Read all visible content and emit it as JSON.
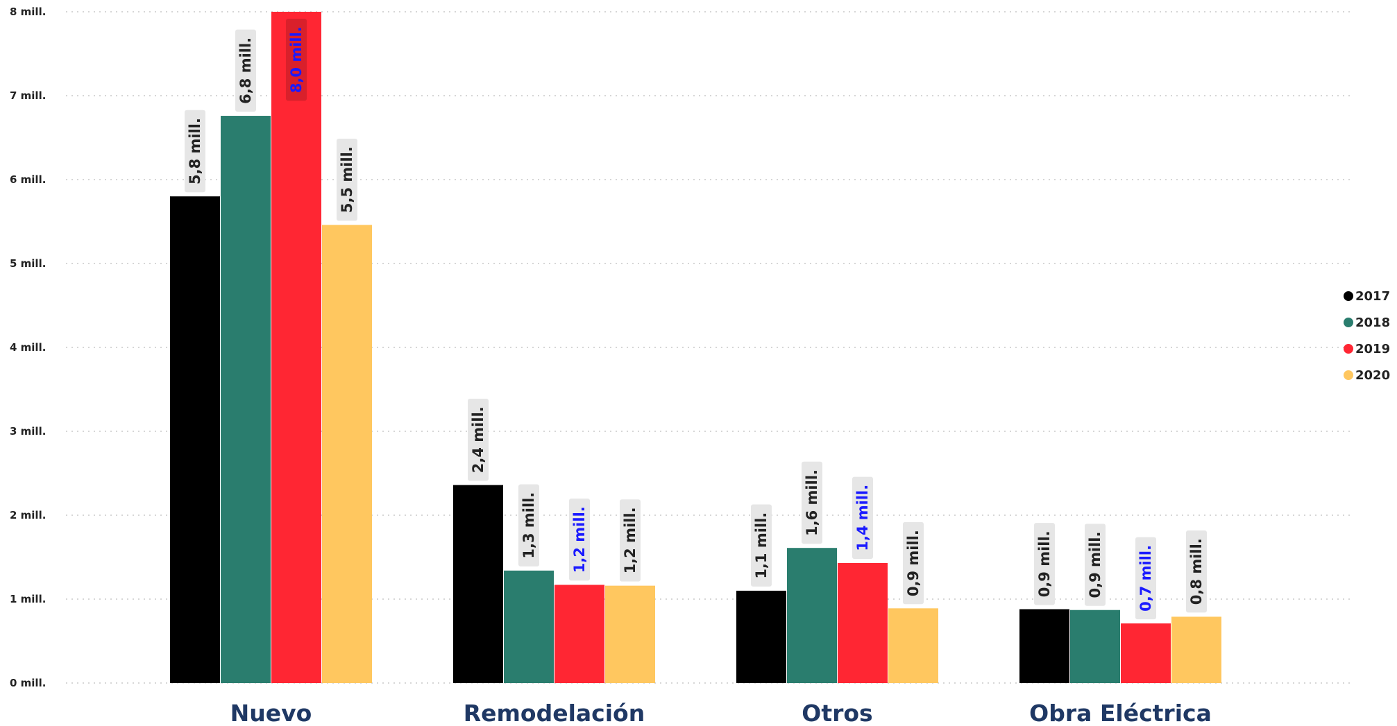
{
  "chart_data": {
    "type": "bar",
    "categories": [
      "Nuevo",
      "Remodelación",
      "Otros",
      "Obra Eléctrica"
    ],
    "series": [
      {
        "name": "2017",
        "color": "#000000",
        "values": [
          5.8,
          2.36,
          1.1,
          0.88
        ],
        "labels": [
          "5,8 mill.",
          "2,4 mill.",
          "1,1 mill.",
          "0,9 mill."
        ]
      },
      {
        "name": "2018",
        "color": "#2a7d6e",
        "values": [
          6.76,
          1.34,
          1.61,
          0.87
        ],
        "labels": [
          "6,8 mill.",
          "1,3 mill.",
          "1,6 mill.",
          "0,9 mill."
        ]
      },
      {
        "name": "2019",
        "color": "#ff2633",
        "values": [
          8.0,
          1.17,
          1.43,
          0.71
        ],
        "labels": [
          "8,0 mill.",
          "1,2 mill.",
          "1,4 mill.",
          "0,7 mill."
        ]
      },
      {
        "name": "2020",
        "color": "#ffc75f",
        "values": [
          5.46,
          1.16,
          0.89,
          0.79
        ],
        "labels": [
          "5,5 mill.",
          "1,2 mill.",
          "0,9 mill.",
          "0,8 mill."
        ]
      }
    ],
    "highlight_series": "2019",
    "highlight_label_color": "#1a1aff",
    "label_color": "#222222",
    "label_box_color": "#e6e6e6",
    "y_ticks": [
      0,
      1,
      2,
      3,
      4,
      5,
      6,
      7,
      8
    ],
    "y_tick_labels": [
      "0 mill.",
      "1 mill.",
      "2 mill.",
      "3 mill.",
      "4 mill.",
      "5 mill.",
      "6 mill.",
      "7 mill.",
      "8 mill."
    ],
    "ylim": [
      0,
      8
    ],
    "grid": true,
    "legend_position": "right",
    "category_label_color": "#1f3864"
  }
}
